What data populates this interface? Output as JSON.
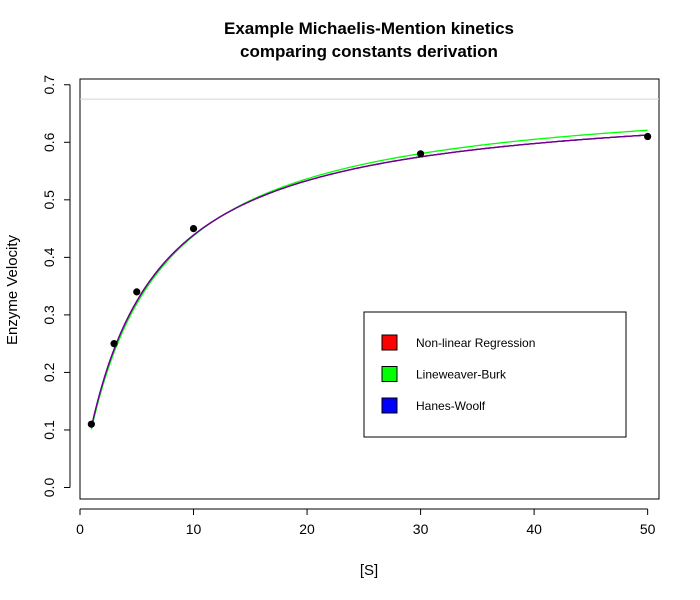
{
  "chart_data": {
    "type": "line",
    "title": "Example Michaelis-Mention kinetics",
    "subtitle": "comparing constants derivation",
    "xlabel": "[S]",
    "ylabel": "Enzyme Velocity",
    "xlim": [
      0,
      51
    ],
    "ylim": [
      -0.02,
      0.71
    ],
    "x_ticks": [
      0,
      10,
      20,
      30,
      40,
      50
    ],
    "y_ticks": [
      0.0,
      0.1,
      0.2,
      0.3,
      0.4,
      0.5,
      0.6,
      0.7
    ],
    "x_tick_labels": [
      "0",
      "10",
      "20",
      "30",
      "40",
      "50"
    ],
    "y_tick_labels": [
      "0.0",
      "0.1",
      "0.2",
      "0.3",
      "0.4",
      "0.5",
      "0.6",
      "0.7"
    ],
    "grid": false,
    "legend_position": "center-right",
    "points": {
      "x": [
        1,
        3,
        5,
        10,
        30,
        50
      ],
      "y": [
        0.11,
        0.25,
        0.34,
        0.45,
        0.58,
        0.61
      ],
      "color": "#000000"
    },
    "hline": {
      "y": 0.675,
      "color": "#d3d3d3"
    },
    "series": [
      {
        "name": "Non-linear Regression",
        "color": "#ff0000",
        "vmax": 0.68,
        "km": 5.5
      },
      {
        "name": "Lineweaver-Burk",
        "color": "#00ff00",
        "vmax": 0.6937,
        "km": 5.86
      },
      {
        "name": "Hanes-Woolf",
        "color": "#0000ff",
        "vmax": 0.68,
        "km": 5.5
      }
    ],
    "curve_overlap_color": "#800080"
  }
}
